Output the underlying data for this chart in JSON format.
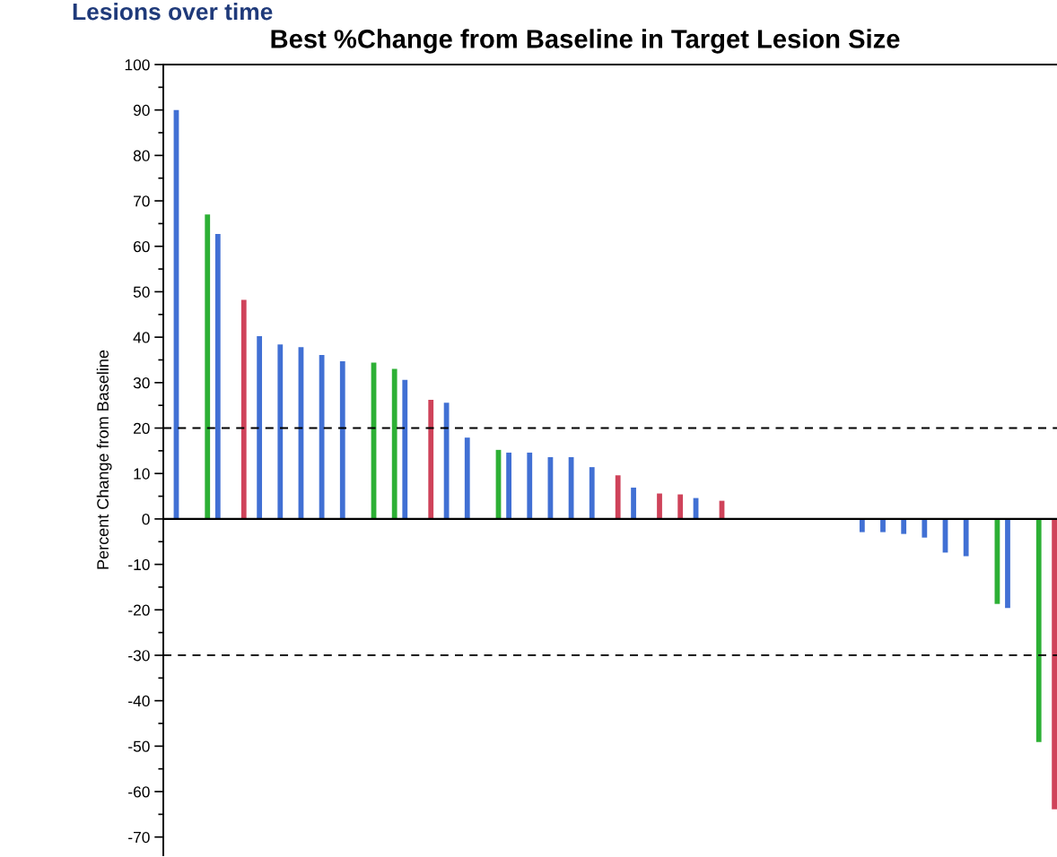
{
  "chart_data": {
    "type": "bar",
    "title": "Lesions over time",
    "subtitle": "Best %Change from Baseline in Target Lesion Size",
    "ylabel": "Percent Change from Baseline",
    "categories": [
      null,
      null,
      null,
      null,
      null,
      null,
      null,
      null,
      null,
      null,
      null,
      null,
      null,
      null,
      null,
      null,
      null,
      null,
      null,
      null,
      null,
      null,
      null,
      null,
      null,
      null,
      null,
      null,
      null,
      null,
      null,
      null,
      null,
      null,
      null,
      null,
      null,
      null,
      null,
      null,
      null,
      null,
      null,
      null,
      null,
      null,
      null,
      null,
      null,
      null,
      null,
      null,
      null,
      null,
      null,
      null,
      null,
      null,
      null,
      null,
      null,
      null,
      null,
      null,
      null,
      null,
      null,
      null,
      null,
      null,
      null,
      null,
      null,
      null,
      null,
      null,
      null,
      null,
      null,
      null,
      null,
      null,
      null,
      null,
      null,
      null,
      null,
      null,
      null,
      null,
      null,
      null,
      null,
      null,
      null,
      null,
      null,
      null,
      null,
      null,
      null,
      null,
      null,
      null,
      null,
      null,
      null,
      null,
      null,
      null,
      null,
      null,
      null,
      null,
      null,
      null,
      null,
      null,
      null,
      null,
      null,
      null,
      null,
      null,
      null,
      null,
      null,
      null,
      null,
      null,
      null,
      null,
      null,
      null,
      null,
      null,
      null,
      null,
      null,
      null,
      null,
      null,
      null,
      null,
      null,
      null,
      null,
      null,
      null,
      null,
      null,
      null,
      null,
      null,
      null,
      null,
      null,
      null,
      null,
      null,
      null,
      null,
      null,
      null,
      null,
      null,
      null,
      null,
      null,
      null,
      null,
      null
    ],
    "values": [
      null,
      null,
      90,
      null,
      null,
      null,
      null,
      null,
      67,
      null,
      62.7,
      null,
      null,
      null,
      null,
      48.2,
      null,
      null,
      40.2,
      null,
      null,
      null,
      38.4,
      null,
      null,
      null,
      37.8,
      null,
      null,
      null,
      36.1,
      null,
      null,
      null,
      34.7,
      null,
      null,
      null,
      null,
      null,
      34.4,
      null,
      null,
      null,
      33.0,
      null,
      30.6,
      null,
      null,
      null,
      null,
      26.2,
      null,
      null,
      25.6,
      null,
      null,
      null,
      17.9,
      null,
      null,
      null,
      null,
      null,
      15.2,
      null,
      14.6,
      null,
      null,
      null,
      14.6,
      null,
      null,
      null,
      13.6,
      null,
      null,
      null,
      13.6,
      null,
      null,
      null,
      11.4,
      null,
      null,
      null,
      null,
      9.6,
      null,
      null,
      6.9,
      null,
      null,
      null,
      null,
      5.6,
      null,
      null,
      null,
      5.4,
      null,
      null,
      4.6,
      null,
      null,
      null,
      null,
      4.0,
      null,
      null,
      null,
      null,
      null,
      null,
      null,
      null,
      null,
      null,
      null,
      null,
      null,
      null,
      null,
      null,
      null,
      null,
      null,
      null,
      null,
      null,
      null,
      null,
      null,
      null,
      -2.9,
      null,
      null,
      null,
      -2.9,
      null,
      null,
      null,
      -3.3,
      null,
      null,
      null,
      -4.1,
      null,
      null,
      null,
      -7.4,
      null,
      null,
      null,
      -8.2,
      null,
      null,
      null,
      null,
      null,
      -18.7,
      null,
      -19.6,
      null,
      null,
      null,
      null,
      null,
      -49.1,
      null,
      null,
      -63.9
    ],
    "colors": [
      null,
      null,
      "#4170d4",
      null,
      null,
      null,
      null,
      null,
      "#2db035",
      null,
      "#4170d4",
      null,
      null,
      null,
      null,
      "#cf435a",
      null,
      null,
      "#4170d4",
      null,
      null,
      null,
      "#4170d4",
      null,
      null,
      null,
      "#4170d4",
      null,
      null,
      null,
      "#4170d4",
      null,
      null,
      null,
      "#4170d4",
      null,
      null,
      null,
      null,
      null,
      "#2db035",
      null,
      null,
      null,
      "#2db035",
      null,
      "#4170d4",
      null,
      null,
      null,
      null,
      "#cf435a",
      null,
      null,
      "#4170d4",
      null,
      null,
      null,
      "#4170d4",
      null,
      null,
      null,
      null,
      null,
      "#2db035",
      null,
      "#4170d4",
      null,
      null,
      null,
      "#4170d4",
      null,
      null,
      null,
      "#4170d4",
      null,
      null,
      null,
      "#4170d4",
      null,
      null,
      null,
      "#4170d4",
      null,
      null,
      null,
      null,
      "#cf435a",
      null,
      null,
      "#4170d4",
      null,
      null,
      null,
      null,
      "#cf435a",
      null,
      null,
      null,
      "#cf435a",
      null,
      null,
      "#4170d4",
      null,
      null,
      null,
      null,
      "#cf435a",
      null,
      null,
      null,
      null,
      null,
      null,
      null,
      null,
      null,
      null,
      null,
      null,
      null,
      null,
      null,
      null,
      null,
      null,
      null,
      null,
      null,
      null,
      null,
      null,
      null,
      null,
      "#4170d4",
      null,
      null,
      null,
      "#4170d4",
      null,
      null,
      null,
      "#4170d4",
      null,
      null,
      null,
      "#4170d4",
      null,
      null,
      null,
      "#4170d4",
      null,
      null,
      null,
      "#4170d4",
      null,
      null,
      null,
      null,
      null,
      "#2db035",
      null,
      "#4170d4",
      null,
      null,
      null,
      null,
      null,
      "#2db035",
      null,
      null,
      "#cf435a"
    ],
    "ylim": [
      -74,
      100
    ],
    "yticks": [
      -70,
      -60,
      -50,
      -40,
      -30,
      -20,
      -10,
      0,
      10,
      20,
      30,
      40,
      50,
      60,
      70,
      80,
      90,
      100
    ],
    "ref_lines": [
      {
        "axis": "y",
        "value": 0,
        "color": "#000000",
        "line_style": "solid"
      },
      {
        "axis": "y",
        "value": 20,
        "color": "#000000",
        "line_style": "dashed"
      },
      {
        "axis": "y",
        "value": -30,
        "color": "#000000",
        "line_style": "dashed"
      }
    ],
    "grid": false,
    "legend": false
  }
}
